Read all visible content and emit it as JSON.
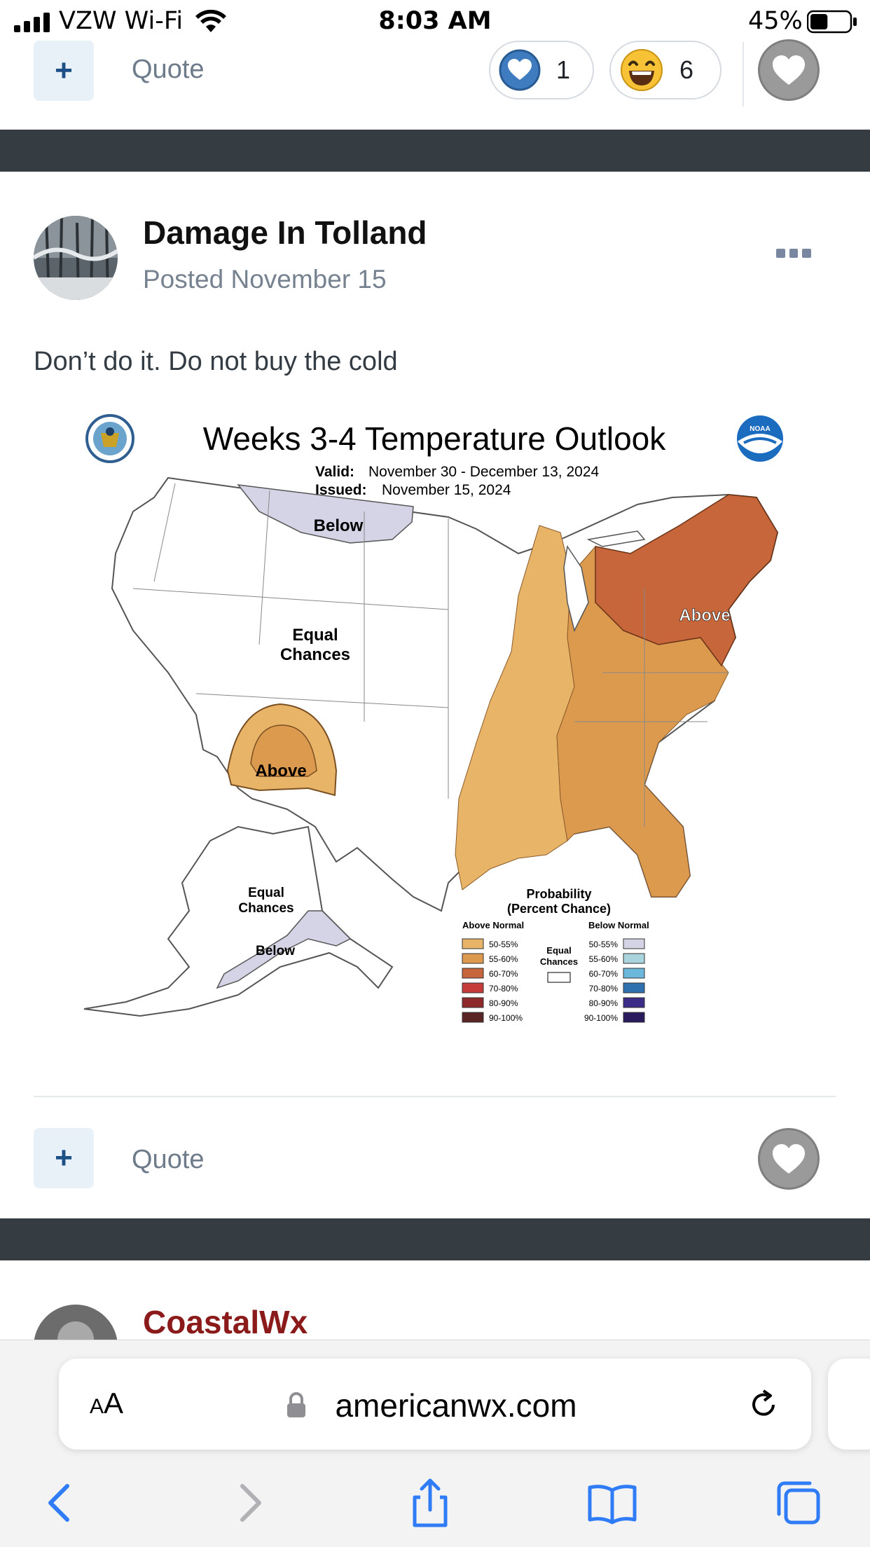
{
  "status_bar": {
    "carrier": "VZW Wi-Fi",
    "time": "8:03 AM",
    "battery_percent": "45%",
    "battery_level": 0.45
  },
  "top_actions": {
    "quote_label": "Quote",
    "reactions": [
      {
        "icon": "heart-reaction-icon",
        "count": "1"
      },
      {
        "icon": "laughing-emoji-icon",
        "count": "6"
      }
    ]
  },
  "post": {
    "author": "Damage In Tolland",
    "posted": "Posted November 15",
    "text": "Don’t do it. Do not buy the cold",
    "image": {
      "title": "Weeks 3-4 Temperature Outlook",
      "valid_label": "Valid:",
      "valid_value": "November 30 - December 13, 2024",
      "issued_label": "Issued:",
      "issued_value": "November 15, 2024",
      "regions": {
        "below_north": "Below",
        "equal_chances": [
          "Equal",
          "Chances"
        ],
        "above_sw": "Above",
        "above_ne": "Above",
        "alaska_equal": [
          "Equal",
          "Chances"
        ],
        "alaska_below": "Below"
      },
      "legend": {
        "title": [
          "Probability",
          "(Percent Chance)"
        ],
        "above_header": "Above Normal",
        "below_header": "Below Normal",
        "equal_label": [
          "Equal",
          "Chances"
        ],
        "above_rows": [
          {
            "label": "50-55%",
            "color": "#e8b468"
          },
          {
            "label": "55-60%",
            "color": "#dc9a4f"
          },
          {
            "label": "60-70%",
            "color": "#c7663a"
          },
          {
            "label": "70-80%",
            "color": "#c63c3c"
          },
          {
            "label": "80-90%",
            "color": "#8e2a2a"
          },
          {
            "label": "90-100%",
            "color": "#5a2424"
          }
        ],
        "below_rows": [
          {
            "label": "50-55%",
            "color": "#d5d4e6"
          },
          {
            "label": "55-60%",
            "color": "#a9d3dd"
          },
          {
            "label": "60-70%",
            "color": "#6cb8dd"
          },
          {
            "label": "70-80%",
            "color": "#2f71ae"
          },
          {
            "label": "80-90%",
            "color": "#3a2c87"
          },
          {
            "label": "90-100%",
            "color": "#2a1a5e"
          }
        ]
      }
    },
    "quote_label": "Quote"
  },
  "next_post": {
    "author": "CoastalWx"
  },
  "safari": {
    "text_size_label_big": "A",
    "text_size_label_small": "A",
    "url": "americanwx.com"
  },
  "colors": {
    "band": "#353c42",
    "accent_blue": "#1c4f86",
    "next_author": "#8b1a1a",
    "ios_blue": "#2f7cf6"
  }
}
